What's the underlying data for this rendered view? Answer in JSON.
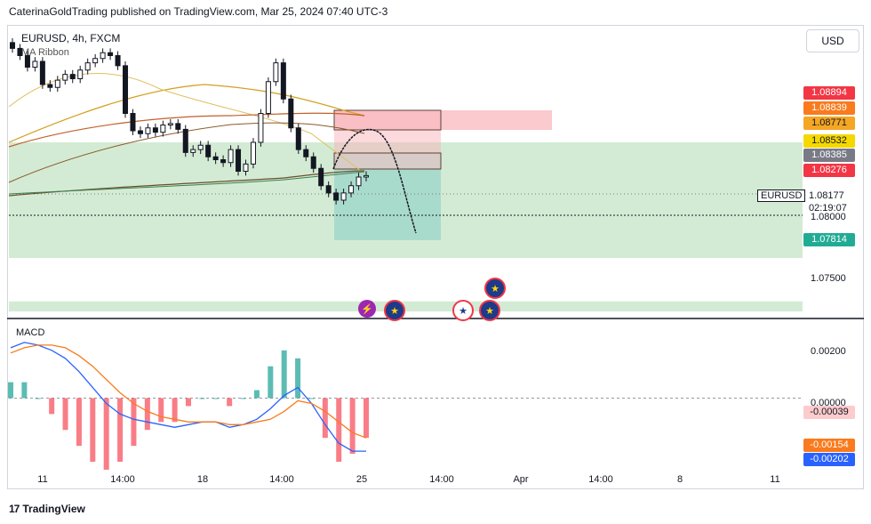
{
  "header": {
    "publisher_line": "CaterinaGoldTrading published on TradingView.com, Mar 25, 2024 07:40 UTC-3"
  },
  "chart": {
    "symbol": "EURUSD, 4h, FXCM",
    "indicator": "MA Ribbon",
    "currency_button": "USD",
    "macd_label": "MACD",
    "footer_brand": "TradingView",
    "price_axis": [
      "1.08000",
      "1.07500"
    ],
    "price_tags": [
      {
        "label": "1.08894",
        "color": "#f23645",
        "text": "#ffffff"
      },
      {
        "label": "1.08839",
        "color": "#f97b1d",
        "text": "#ffffff"
      },
      {
        "label": "1.08771",
        "color": "#f5a623",
        "text": "#131722"
      },
      {
        "label": "1.08532",
        "color": "#f5d800",
        "text": "#131722"
      },
      {
        "label": "1.08385",
        "color": "#787b86",
        "text": "#ffffff"
      },
      {
        "label": "1.08276",
        "color": "#f23645",
        "text": "#ffffff"
      },
      {
        "label": "1.07814",
        "color": "#22ab94",
        "text": "#ffffff"
      }
    ],
    "current_symbol_tag": "EURUSD",
    "current_price": "1.08177",
    "countdown": "02:19:07",
    "macd_axis": [
      "0.00200",
      "0.00000"
    ],
    "macd_tags": [
      {
        "label": "-0.00039",
        "color": "#fccbcd",
        "text": "#131722"
      },
      {
        "label": "-0.00154",
        "color": "#f97b1d",
        "text": "#ffffff"
      },
      {
        "label": "-0.00202",
        "color": "#2962ff",
        "text": "#ffffff"
      }
    ],
    "x_axis": [
      "11",
      "14:00",
      "18",
      "14:00",
      "25",
      "14:00",
      "Apr",
      "14:00",
      "8",
      "11"
    ],
    "colors": {
      "bull": "#131722",
      "bear": "#131722",
      "green_zone": "#c8e6c9",
      "red_zone": "#f8b4b9",
      "macd_line": "#2962ff",
      "signal_line": "#f97b1d"
    }
  },
  "chart_data": {
    "type": "candlestick",
    "title": "EURUSD, 4h, FXCM",
    "y_range": [
      1.072,
      1.092
    ],
    "candles_close": [
      1.0905,
      1.09,
      1.0892,
      1.0896,
      1.088,
      1.0878,
      1.0883,
      1.0887,
      1.0884,
      1.089,
      1.0895,
      1.0898,
      1.0902,
      1.09,
      1.0893,
      1.086,
      1.0848,
      1.0846,
      1.085,
      1.0847,
      1.0852,
      1.0853,
      1.0849,
      1.0833,
      1.0835,
      1.0838,
      1.083,
      1.0828,
      1.0826,
      1.0835,
      1.082,
      1.0825,
      1.084,
      1.086,
      1.0882,
      1.0895,
      1.087,
      1.085,
      1.0835,
      1.083,
      1.0822,
      1.081,
      1.0805,
      1.08,
      1.0805,
      1.081,
      1.0816,
      1.0817
    ],
    "macd": [
      0.0019,
      0.0021,
      0.002,
      0.0018,
      0.0015,
      0.001,
      0.0004,
      -0.0002,
      -0.0006,
      -0.0008,
      -0.0009,
      -0.001,
      -0.0011,
      -0.001,
      -0.0009,
      -0.0009,
      -0.0011,
      -0.001,
      -0.0008,
      -0.0004,
      0.0001,
      0.0004,
      -0.0002,
      -0.001,
      -0.0017,
      -0.002,
      -0.002
    ],
    "signal": [
      0.0017,
      0.0019,
      0.002,
      0.002,
      0.0019,
      0.0016,
      0.0012,
      0.0007,
      0.0002,
      -0.0002,
      -0.0005,
      -0.0007,
      -0.0008,
      -0.0009,
      -0.0009,
      -0.0009,
      -0.001,
      -0.001,
      -0.0009,
      -0.0008,
      -0.0005,
      -0.0001,
      -0.0002,
      -0.0005,
      -0.0009,
      -0.0013,
      -0.0015
    ]
  }
}
